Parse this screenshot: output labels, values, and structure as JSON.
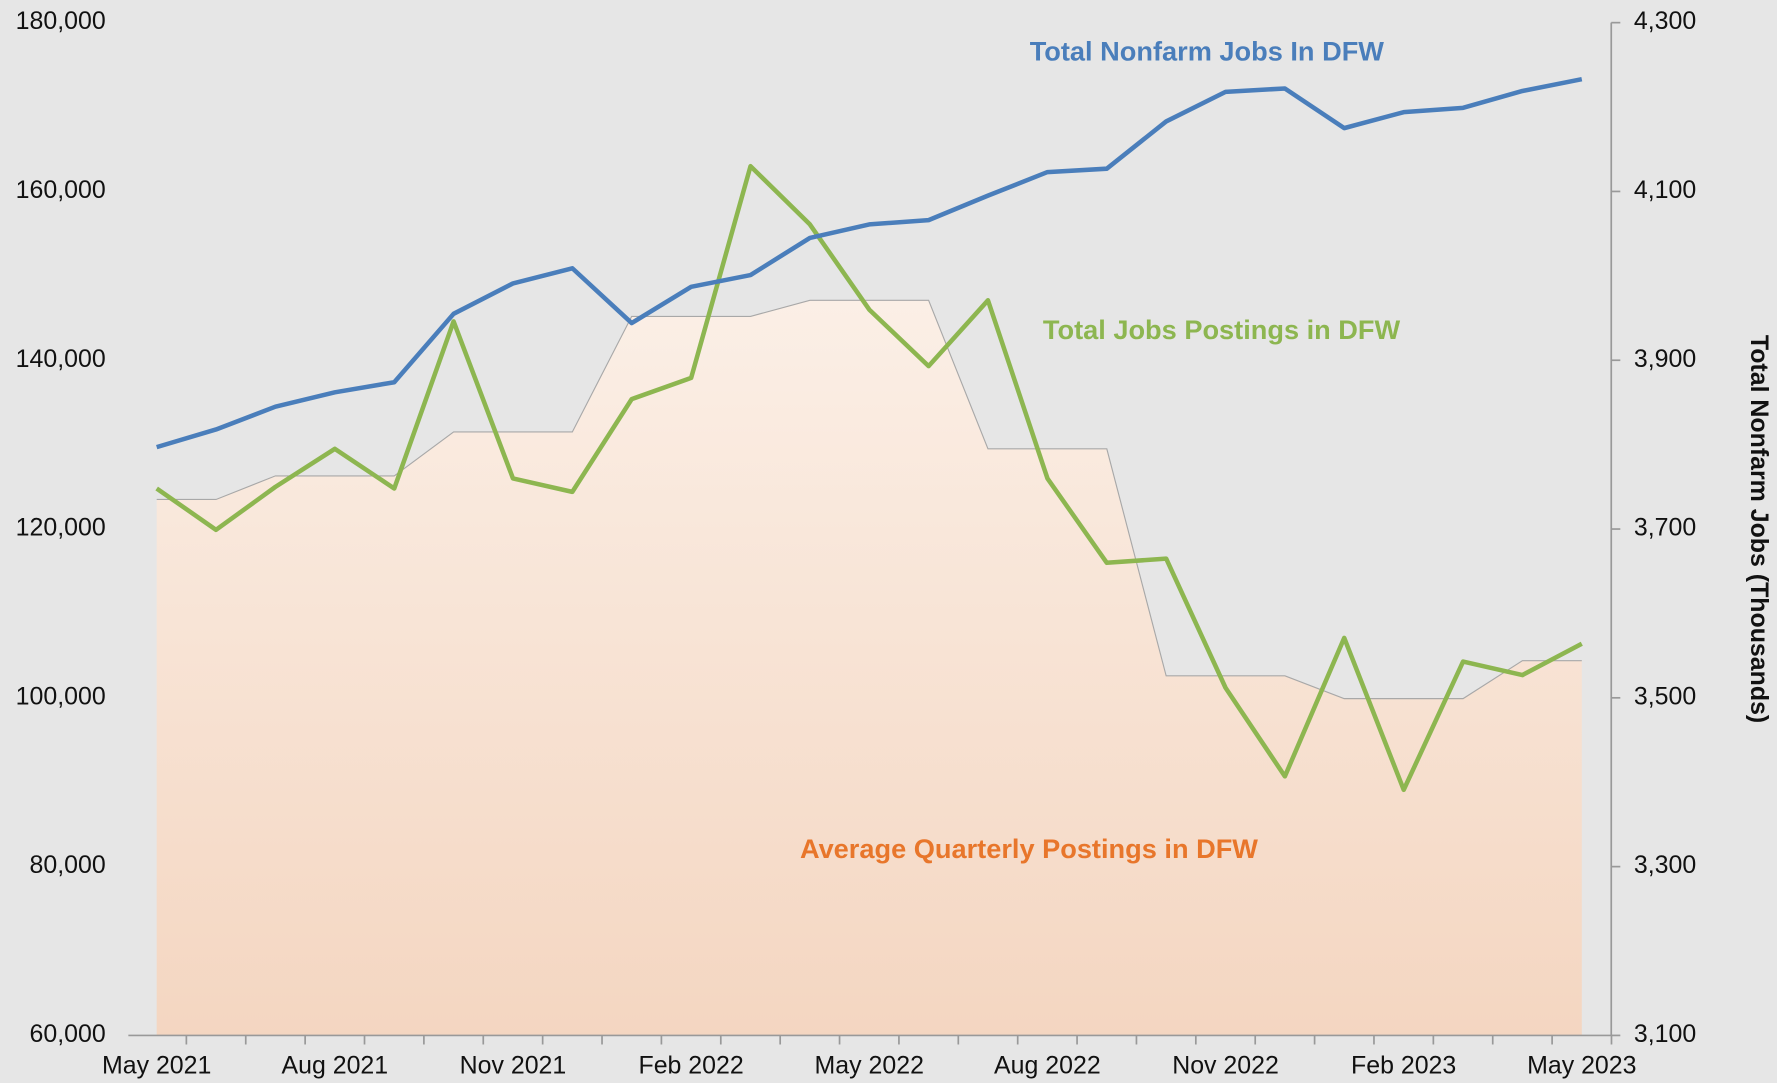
{
  "chart_data": {
    "type": "line",
    "categories": [
      "May 2021",
      null,
      null,
      "Aug 2021",
      null,
      null,
      "Nov 2021",
      null,
      null,
      "Feb 2022",
      null,
      null,
      "May 2022",
      null,
      null,
      "Aug 2022",
      null,
      null,
      "Nov 2022",
      null,
      null,
      "Feb 2023",
      null,
      null,
      "May 2023"
    ],
    "series": [
      {
        "name": "Average Quarterly Postings in DFW",
        "kind": "area",
        "color": "#f5d9c3",
        "label_color": "#e8762b",
        "axis": "y",
        "values": [
          123500,
          123500,
          126300,
          126300,
          126300,
          131500,
          131500,
          131500,
          145200,
          145200,
          145200,
          147100,
          147100,
          147100,
          129500,
          129500,
          129500,
          102600,
          102600,
          102600,
          99900,
          99900,
          99900,
          104400,
          104400
        ]
      },
      {
        "name": "Total Jobs Postings in DFW",
        "kind": "line",
        "color": "#8db650",
        "axis": "y",
        "values": [
          124800,
          119900,
          125000,
          129500,
          124800,
          144600,
          126000,
          124400,
          135400,
          137900,
          163000,
          156100,
          146000,
          139300,
          147100,
          126000,
          116000,
          116500,
          101200,
          90700,
          107100,
          89100,
          104300,
          102700,
          106400
        ]
      },
      {
        "name": "Total Nonfarm Jobs In DFW",
        "kind": "line",
        "color": "#4a7ebb",
        "axis": "y2",
        "values": [
          3797,
          3818,
          3845,
          3862,
          3874,
          3955,
          3991,
          4009,
          3944,
          3987,
          4001,
          4045,
          4061,
          4066,
          4095,
          4123,
          4127,
          4183,
          4218,
          4222,
          4175,
          4194,
          4199,
          4219,
          4233
        ]
      }
    ],
    "ylim": [
      60000,
      180000
    ],
    "yticks": [
      {
        "value": 60000,
        "label": "60,000"
      },
      {
        "value": 80000,
        "label": "80,000"
      },
      {
        "value": 100000,
        "label": "100,000"
      },
      {
        "value": 120000,
        "label": "120,000"
      },
      {
        "value": 140000,
        "label": "140,000"
      },
      {
        "value": 160000,
        "label": "160,000"
      },
      {
        "value": 180000,
        "label": "180,000"
      }
    ],
    "y2lim": [
      3100,
      4300
    ],
    "y2ticks": [
      {
        "value": 3100,
        "label": "3,100"
      },
      {
        "value": 3300,
        "label": "3,300"
      },
      {
        "value": 3500,
        "label": "3,500"
      },
      {
        "value": 3700,
        "label": "3,700"
      },
      {
        "value": 3900,
        "label": "3,900"
      },
      {
        "value": 4100,
        "label": "4,100"
      },
      {
        "value": 4300,
        "label": "4,300"
      }
    ],
    "y2label": "Total Nonfarm Jobs (Thousands)"
  }
}
